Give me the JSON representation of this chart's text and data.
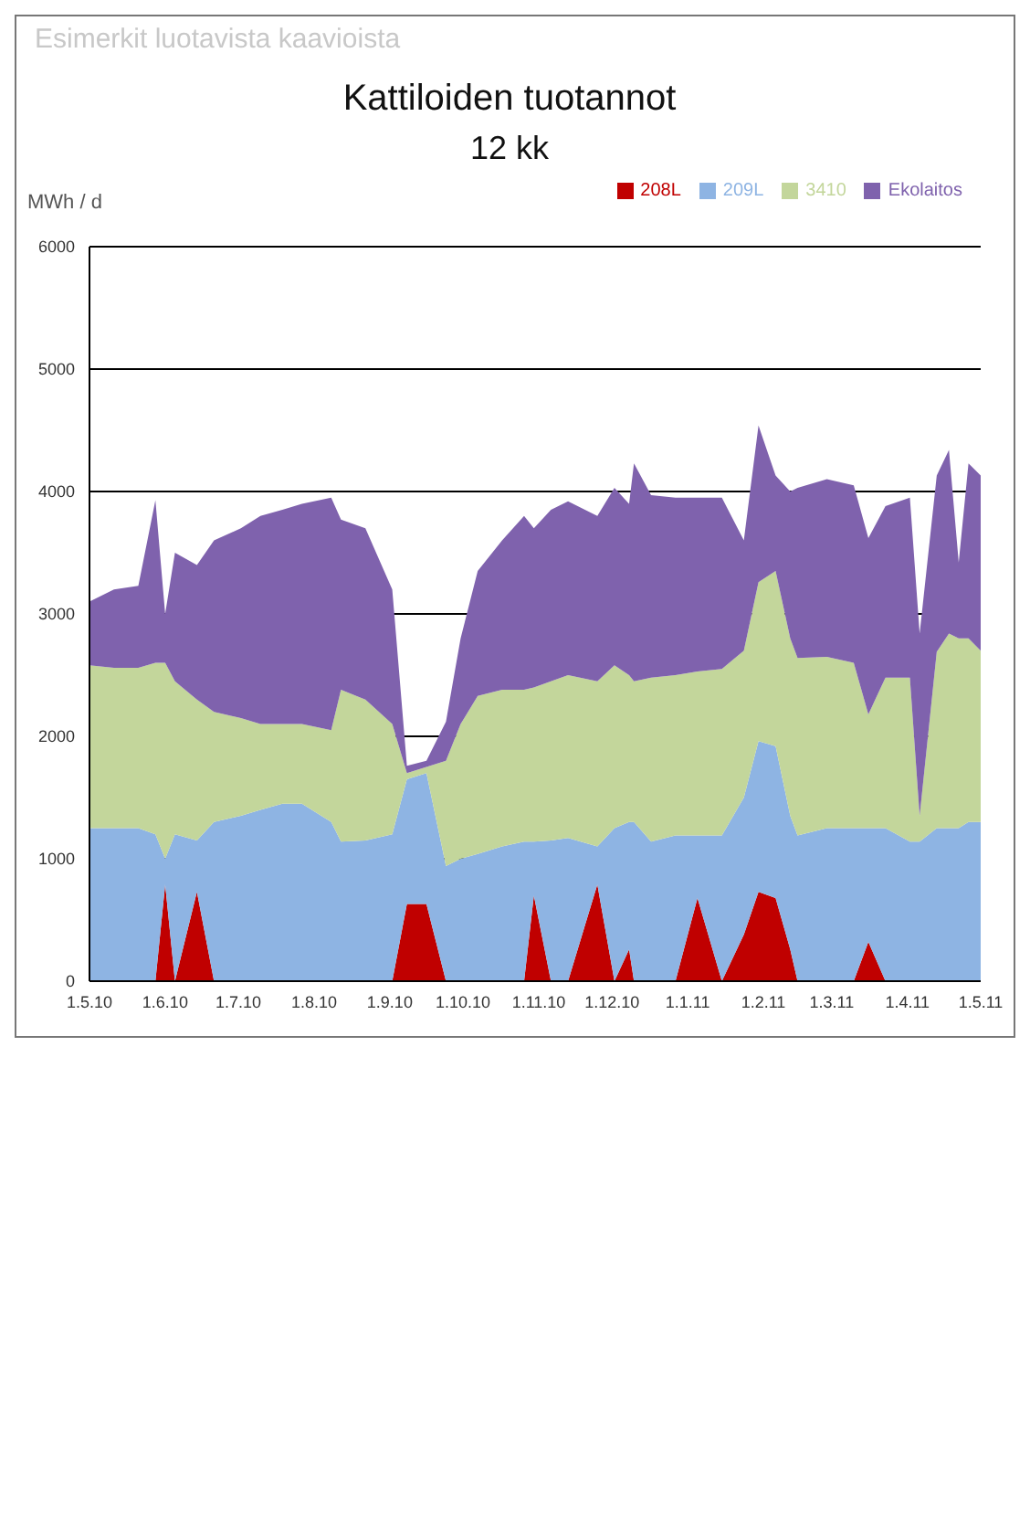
{
  "chart_data": {
    "type": "area",
    "stacked": true,
    "title": "Kattiloiden tuotannot",
    "subtitle": "12 kk",
    "ylabel": "MWh / d",
    "annotations": [
      "Esimerkit luotavista kaavioista"
    ],
    "x": [
      "2010-05-01",
      "2010-05-11",
      "2010-05-21",
      "2010-05-28",
      "2010-06-01",
      "2010-06-05",
      "2010-06-14",
      "2010-06-21",
      "2010-07-02",
      "2010-07-10",
      "2010-07-19",
      "2010-07-27",
      "2010-08-08",
      "2010-08-12",
      "2010-08-22",
      "2010-09-02",
      "2010-09-08",
      "2010-09-16",
      "2010-09-24",
      "2010-09-30",
      "2010-10-07",
      "2010-10-17",
      "2010-10-26",
      "2010-10-30",
      "2010-11-06",
      "2010-11-13",
      "2010-11-25",
      "2010-12-02",
      "2010-12-08",
      "2010-12-10",
      "2010-12-17",
      "2010-12-27",
      "2011-01-05",
      "2011-01-15",
      "2011-01-24",
      "2011-01-30",
      "2011-02-06",
      "2011-02-12",
      "2011-02-15",
      "2011-02-27",
      "2011-03-10",
      "2011-03-16",
      "2011-03-23",
      "2011-04-02",
      "2011-04-06",
      "2011-04-13",
      "2011-04-18",
      "2011-04-22",
      "2011-04-26",
      "2011-05-01"
    ],
    "series": [
      {
        "name": "208L",
        "color": "#c00000",
        "values": [
          0,
          0,
          0,
          0,
          790,
          0,
          730,
          0,
          0,
          0,
          0,
          0,
          0,
          0,
          0,
          0,
          630,
          630,
          0,
          0,
          0,
          0,
          0,
          700,
          0,
          0,
          790,
          0,
          260,
          0,
          0,
          0,
          680,
          0,
          380,
          730,
          680,
          260,
          0,
          0,
          0,
          320,
          0,
          0,
          0,
          0,
          0,
          0,
          0,
          0
        ]
      },
      {
        "name": "209L",
        "color": "#8eb4e3",
        "values": [
          1250,
          1250,
          1250,
          1200,
          210,
          1200,
          420,
          1300,
          1350,
          1400,
          1450,
          1450,
          1300,
          1140,
          1150,
          1200,
          1020,
          1070,
          940,
          1000,
          1040,
          1100,
          1140,
          440,
          1150,
          1170,
          310,
          1250,
          1040,
          1300,
          1140,
          1190,
          510,
          1190,
          1120,
          1230,
          1240,
          1090,
          1190,
          1250,
          1250,
          930,
          1250,
          1140,
          1140,
          1250,
          1250,
          1250,
          1300,
          1300
        ]
      },
      {
        "name": "3410",
        "color": "#c3d69b",
        "values": [
          1330,
          1310,
          1310,
          1400,
          1600,
          1250,
          1150,
          900,
          800,
          700,
          650,
          650,
          750,
          1240,
          1150,
          900,
          50,
          50,
          860,
          1100,
          1290,
          1280,
          1240,
          1260,
          1300,
          1330,
          1350,
          1330,
          1200,
          1150,
          1340,
          1310,
          1340,
          1360,
          1200,
          1300,
          1430,
          1450,
          1450,
          1400,
          1350,
          930,
          1230,
          1340,
          210,
          1440,
          1590,
          1550,
          1500,
          1400
        ]
      },
      {
        "name": "Ekolaitos",
        "color": "#7f62ad",
        "values": [
          520,
          640,
          670,
          1330,
          400,
          1050,
          1100,
          1400,
          1550,
          1700,
          1750,
          1800,
          1900,
          1390,
          1400,
          1100,
          60,
          50,
          320,
          700,
          1020,
          1220,
          1420,
          1300,
          1400,
          1420,
          1350,
          1450,
          1400,
          1780,
          1490,
          1450,
          1420,
          1400,
          900,
          1280,
          780,
          1200,
          1390,
          1450,
          1450,
          1440,
          1400,
          1470,
          1490,
          1440,
          1500,
          620,
          1430,
          1430
        ]
      }
    ],
    "xlim": [
      "2010-05-01",
      "2011-05-01"
    ],
    "xticks": [
      {
        "value": "2010-05-01",
        "label": "1.5.10"
      },
      {
        "value": "2010-06-01",
        "label": "1.6.10"
      },
      {
        "value": "2010-07-01",
        "label": "1.7.10"
      },
      {
        "value": "2010-08-01",
        "label": "1.8.10"
      },
      {
        "value": "2010-09-01",
        "label": "1.9.10"
      },
      {
        "value": "2010-10-01",
        "label": "1.10.10"
      },
      {
        "value": "2010-11-01",
        "label": "1.11.10"
      },
      {
        "value": "2010-12-01",
        "label": "1.12.10"
      },
      {
        "value": "2011-01-01",
        "label": "1.1.11"
      },
      {
        "value": "2011-02-01",
        "label": "1.2.11"
      },
      {
        "value": "2011-03-01",
        "label": "1.3.11"
      },
      {
        "value": "2011-04-01",
        "label": "1.4.11"
      },
      {
        "value": "2011-05-01",
        "label": "1.5.11"
      }
    ],
    "ylim": [
      0,
      6000
    ],
    "yticks": [
      0,
      1000,
      2000,
      3000,
      4000,
      5000,
      6000
    ],
    "grid": "y",
    "legend": "top right"
  }
}
